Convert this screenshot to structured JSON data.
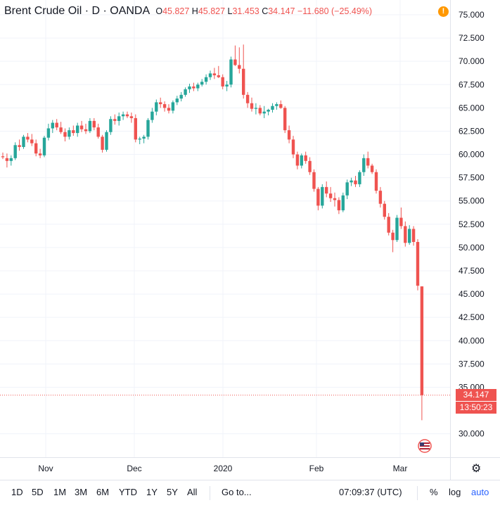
{
  "legend": {
    "symbol": "Brent Crude Oil · D · OANDA",
    "o_label": "O",
    "o_value": "45.827",
    "h_label": "H",
    "h_value": "45.827",
    "l_label": "L",
    "l_value": "31.453",
    "c_label": "C",
    "c_value": "34.147",
    "change": "−11.680 (−25.49%)"
  },
  "alert_icon": "!",
  "price_tags": {
    "last_price": "34.147",
    "countdown": "13:50:23"
  },
  "colors": {
    "up": "#26a69a",
    "down": "#ef5350",
    "grid": "#f0f3fa",
    "axis": "#e0e3eb"
  },
  "toolbar": {
    "ranges": [
      "1D",
      "5D",
      "1M",
      "3M",
      "6M",
      "YTD",
      "1Y",
      "5Y",
      "All"
    ],
    "goto": "Go to...",
    "time": "07:09:37 (UTC)",
    "percent": "%",
    "log": "log",
    "auto": "auto"
  },
  "chart_data": {
    "type": "candlestick",
    "yticks": [
      "75.000",
      "72.500",
      "70.000",
      "67.500",
      "65.000",
      "62.500",
      "60.000",
      "57.500",
      "55.000",
      "52.500",
      "50.000",
      "47.500",
      "45.000",
      "42.500",
      "40.000",
      "37.500",
      "35.000",
      "30.000"
    ],
    "xticks": [
      "Nov",
      "Dec",
      "2020",
      "Feb",
      "Mar"
    ],
    "ylim": [
      27.5,
      76.0
    ],
    "last_price": 34.147,
    "candles": [
      [
        59.8,
        60.2,
        59.5,
        59.7
      ],
      [
        59.6,
        60.1,
        58.6,
        59.3
      ],
      [
        59.3,
        59.9,
        58.8,
        59.6
      ],
      [
        59.6,
        61.3,
        59.4,
        61.0
      ],
      [
        61.0,
        61.6,
        60.4,
        60.8
      ],
      [
        60.8,
        62.1,
        60.6,
        61.9
      ],
      [
        61.9,
        62.3,
        61.3,
        61.6
      ],
      [
        61.6,
        62.2,
        60.9,
        61.2
      ],
      [
        61.2,
        61.6,
        59.8,
        60.1
      ],
      [
        60.1,
        60.6,
        59.6,
        59.9
      ],
      [
        59.9,
        62.0,
        59.7,
        61.8
      ],
      [
        61.8,
        63.3,
        61.5,
        62.8
      ],
      [
        62.8,
        63.7,
        62.3,
        63.4
      ],
      [
        63.4,
        63.8,
        62.6,
        62.9
      ],
      [
        62.9,
        63.5,
        62.2,
        62.4
      ],
      [
        62.4,
        62.8,
        61.4,
        61.9
      ],
      [
        61.9,
        62.9,
        61.6,
        62.6
      ],
      [
        62.6,
        63.1,
        62.0,
        62.3
      ],
      [
        62.3,
        63.4,
        61.9,
        63.1
      ],
      [
        63.1,
        63.6,
        62.4,
        62.7
      ],
      [
        62.7,
        63.3,
        62.2,
        62.5
      ],
      [
        62.5,
        63.9,
        62.3,
        63.6
      ],
      [
        63.6,
        63.9,
        62.6,
        62.9
      ],
      [
        62.9,
        63.3,
        61.7,
        61.9
      ],
      [
        61.9,
        62.1,
        60.2,
        60.5
      ],
      [
        60.5,
        62.6,
        60.3,
        62.4
      ],
      [
        62.4,
        64.1,
        62.1,
        63.8
      ],
      [
        63.8,
        64.3,
        63.2,
        63.6
      ],
      [
        63.6,
        64.5,
        63.1,
        64.1
      ],
      [
        64.1,
        64.6,
        63.7,
        64.3
      ],
      [
        64.3,
        64.6,
        63.9,
        64.1
      ],
      [
        64.1,
        64.5,
        63.4,
        63.9
      ],
      [
        63.9,
        64.3,
        61.3,
        61.6
      ],
      [
        61.6,
        61.9,
        61.1,
        61.7
      ],
      [
        61.7,
        62.1,
        61.2,
        61.9
      ],
      [
        61.9,
        63.9,
        61.6,
        63.7
      ],
      [
        63.7,
        65.0,
        63.4,
        64.6
      ],
      [
        64.6,
        65.9,
        64.2,
        65.6
      ],
      [
        65.6,
        66.1,
        65.0,
        65.4
      ],
      [
        65.4,
        65.7,
        64.6,
        65.0
      ],
      [
        65.0,
        65.4,
        64.4,
        64.7
      ],
      [
        64.7,
        65.8,
        64.4,
        65.6
      ],
      [
        65.6,
        66.3,
        65.3,
        66.0
      ],
      [
        66.0,
        66.7,
        65.7,
        66.4
      ],
      [
        66.4,
        67.2,
        66.2,
        67.0
      ],
      [
        67.0,
        67.6,
        66.6,
        67.3
      ],
      [
        67.3,
        67.7,
        66.8,
        67.1
      ],
      [
        67.1,
        67.7,
        66.8,
        67.5
      ],
      [
        67.5,
        68.1,
        67.3,
        67.8
      ],
      [
        67.8,
        68.6,
        67.5,
        68.3
      ],
      [
        68.3,
        69.0,
        68.0,
        68.7
      ],
      [
        68.7,
        69.3,
        68.1,
        68.5
      ],
      [
        68.5,
        69.5,
        68.2,
        68.3
      ],
      [
        68.3,
        68.6,
        67.0,
        67.3
      ],
      [
        67.3,
        67.9,
        66.8,
        67.5
      ],
      [
        67.5,
        70.5,
        67.2,
        70.2
      ],
      [
        70.2,
        71.7,
        69.5,
        69.6
      ],
      [
        69.6,
        71.5,
        68.7,
        69.2
      ],
      [
        69.2,
        71.8,
        66.0,
        66.4
      ],
      [
        66.4,
        66.7,
        65.0,
        65.5
      ],
      [
        65.5,
        66.1,
        64.6,
        64.9
      ],
      [
        64.9,
        65.5,
        64.3,
        65.0
      ],
      [
        65.0,
        65.3,
        64.2,
        64.4
      ],
      [
        64.4,
        65.2,
        63.9,
        64.6
      ],
      [
        64.6,
        64.9,
        64.2,
        64.8
      ],
      [
        64.8,
        65.5,
        64.5,
        65.2
      ],
      [
        65.2,
        65.6,
        64.8,
        65.4
      ],
      [
        65.4,
        65.8,
        64.9,
        65.0
      ],
      [
        65.0,
        65.2,
        62.3,
        62.6
      ],
      [
        62.6,
        63.1,
        61.2,
        61.6
      ],
      [
        61.6,
        62.0,
        59.6,
        60.0
      ],
      [
        60.0,
        60.3,
        58.4,
        58.8
      ],
      [
        58.8,
        60.1,
        58.5,
        59.9
      ],
      [
        59.9,
        60.3,
        59.0,
        59.3
      ],
      [
        59.3,
        59.7,
        57.8,
        58.1
      ],
      [
        58.1,
        58.4,
        56.0,
        56.3
      ],
      [
        56.3,
        56.5,
        54.0,
        54.5
      ],
      [
        54.5,
        56.8,
        54.2,
        56.5
      ],
      [
        56.5,
        57.1,
        55.4,
        55.8
      ],
      [
        55.8,
        56.5,
        54.9,
        55.3
      ],
      [
        55.3,
        55.9,
        54.4,
        55.1
      ],
      [
        55.1,
        55.4,
        53.6,
        54.0
      ],
      [
        54.0,
        55.9,
        53.8,
        55.6
      ],
      [
        55.6,
        57.3,
        55.2,
        57.0
      ],
      [
        57.0,
        57.5,
        56.6,
        57.2
      ],
      [
        57.2,
        57.7,
        56.5,
        56.8
      ],
      [
        56.8,
        58.3,
        56.5,
        58.1
      ],
      [
        58.1,
        60.0,
        57.7,
        59.6
      ],
      [
        59.6,
        60.3,
        58.5,
        58.8
      ],
      [
        58.8,
        59.0,
        57.9,
        58.1
      ],
      [
        58.1,
        58.4,
        55.8,
        56.1
      ],
      [
        56.1,
        56.5,
        54.3,
        54.7
      ],
      [
        54.7,
        55.0,
        53.0,
        53.3
      ],
      [
        53.3,
        53.7,
        51.3,
        51.6
      ],
      [
        51.6,
        51.9,
        49.5,
        50.8
      ],
      [
        50.8,
        53.5,
        50.6,
        53.2
      ],
      [
        53.2,
        54.3,
        52.0,
        52.3
      ],
      [
        52.3,
        52.8,
        50.1,
        50.5
      ],
      [
        50.5,
        52.4,
        50.3,
        52.0
      ],
      [
        52.0,
        52.3,
        50.2,
        50.6
      ],
      [
        50.6,
        50.9,
        45.4,
        45.9
      ],
      [
        45.827,
        45.827,
        31.453,
        34.147
      ]
    ]
  }
}
